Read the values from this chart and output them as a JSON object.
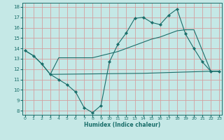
{
  "xlabel": "Humidex (Indice chaleur)",
  "bg_color": "#c5e8e6",
  "grid_color": "#d4a0a0",
  "line_color": "#1a6e6a",
  "xlim": [
    -0.3,
    23.3
  ],
  "ylim": [
    7.6,
    18.4
  ],
  "xticks": [
    0,
    1,
    2,
    3,
    4,
    5,
    6,
    7,
    8,
    9,
    10,
    11,
    12,
    13,
    14,
    15,
    16,
    17,
    18,
    19,
    20,
    21,
    22,
    23
  ],
  "yticks": [
    8,
    9,
    10,
    11,
    12,
    13,
    14,
    15,
    16,
    17,
    18
  ],
  "line1_x": [
    0,
    1,
    2,
    3,
    4,
    5,
    6,
    7,
    8,
    9,
    10,
    11,
    12,
    13,
    14,
    15,
    16,
    17,
    18,
    19,
    20,
    21,
    22,
    23
  ],
  "line1_y": [
    13.8,
    13.3,
    12.5,
    11.5,
    11.0,
    10.5,
    9.8,
    8.3,
    7.8,
    8.5,
    12.7,
    14.4,
    15.5,
    16.9,
    17.0,
    16.5,
    16.3,
    17.2,
    17.8,
    15.4,
    14.0,
    12.7,
    11.8,
    11.8
  ],
  "line2_x": [
    0,
    1,
    2,
    3,
    4,
    5,
    6,
    7,
    8,
    9,
    10,
    11,
    12,
    13,
    14,
    15,
    16,
    17,
    18,
    19,
    20,
    21,
    22,
    23
  ],
  "line2_y": [
    13.8,
    13.3,
    12.5,
    11.5,
    13.1,
    13.1,
    13.1,
    13.1,
    13.1,
    13.3,
    13.5,
    13.7,
    14.0,
    14.3,
    14.6,
    14.9,
    15.1,
    15.4,
    15.7,
    15.8,
    15.8,
    13.8,
    11.8,
    11.8
  ],
  "line3_x": [
    3,
    14,
    22,
    23
  ],
  "line3_y": [
    11.5,
    11.6,
    11.8,
    11.8
  ]
}
